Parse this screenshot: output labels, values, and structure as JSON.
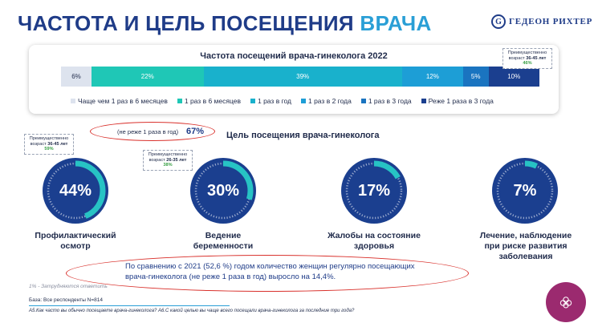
{
  "header": {
    "title_part1": "ЧАСТОТА И ЦЕЛЬ ПОСЕЩЕНИЯ",
    "title_part2": "ВРАЧА",
    "logo_text": "ГЕДЕОН РИХТЕР",
    "logo_glyph": "G"
  },
  "frequency_chart": {
    "title": "Частота посещений врача-гинеколога 2022",
    "note": {
      "line1": "Преимущественно",
      "line2_prefix": "возраст",
      "line2_age": "36-45 лет",
      "line3": "46%"
    }
  },
  "chart_data": [
    {
      "type": "bar",
      "orientation": "horizontal-stacked",
      "title": "Частота посещений врача-гинеколога 2022",
      "series": [
        {
          "name": "Чаще чем 1 раз в 6 месяцев",
          "value": 6,
          "label": "6%",
          "color": "#dde3ee"
        },
        {
          "name": "1 раз в 6 месяцев",
          "value": 22,
          "label": "22%",
          "color": "#1fc7b6"
        },
        {
          "name": "1 раз в год",
          "value": 39,
          "label": "39%",
          "color": "#19b1cc"
        },
        {
          "name": "1 раз в 2 года",
          "value": 12,
          "label": "12%",
          "color": "#1d9ed6"
        },
        {
          "name": "1 раз в 3 года",
          "value": 5,
          "label": "5%",
          "color": "#1a74c0"
        },
        {
          "name": "Реже 1 раза в 3 года",
          "value": 10,
          "label": "10%",
          "color": "#1b3f8f"
        }
      ],
      "legend_position": "bottom"
    },
    {
      "type": "pie",
      "title": "Цель посещения врача-гинеколога",
      "items": [
        {
          "name": "Профилактический осмотр",
          "value": 44,
          "label": "44%"
        },
        {
          "name": "Ведение беременности",
          "value": 30,
          "label": "30%"
        },
        {
          "name": "Жалобы на состояние здоровья",
          "value": 17,
          "label": "17%"
        },
        {
          "name": "Лечение, наблюдение при риске развития заболевания",
          "value": 7,
          "label": "7%"
        }
      ]
    }
  ],
  "summary": {
    "label": "(не реже 1 раза в год)",
    "value": "67%"
  },
  "goals": {
    "title": "Цель посещения врача-гинеколога",
    "items": [
      {
        "value": 44,
        "label": "44%",
        "line1": "Профилактический",
        "line2": "осмотр",
        "line3": ""
      },
      {
        "value": 30,
        "label": "30%",
        "line1": "Ведение",
        "line2": "беременности",
        "line3": ""
      },
      {
        "value": 17,
        "label": "17%",
        "line1": "Жалобы на состояние",
        "line2": "здоровья",
        "line3": ""
      },
      {
        "value": 7,
        "label": "7%",
        "line1": "Лечение, наблюдение",
        "line2": "при риске развития",
        "line3": "заболевания"
      }
    ],
    "notes": [
      {
        "line1": "Преимущественно",
        "line2_prefix": "возраст",
        "line2_age": "36-45 лет",
        "line3": "59%"
      },
      {
        "line1": "Преимущественно",
        "line2_prefix": "возраст",
        "line2_age": "26-35 лет",
        "line3": "38%"
      }
    ]
  },
  "comparison": {
    "text": "По сравнению с 2021 (52,6 %) годом количество женщин регулярно посещающих врача-гинеколога (не реже 1 раза в год) выросло на 14,4%."
  },
  "footer": {
    "footnote": "1% - Затрудняются ответить",
    "base": "База: Все респонденты N=814",
    "questions": "А5.Как часто вы обычно посещаете врача-гинеколога? А6.С какой целью вы чаще всего посещали врача-гинеколога за последние три года?"
  },
  "colors": {
    "ring_fill": "#1b3f8f",
    "ring_progress": "#27c3c4",
    "accent_red": "#d9312c",
    "badge": "#9b2a6f"
  }
}
